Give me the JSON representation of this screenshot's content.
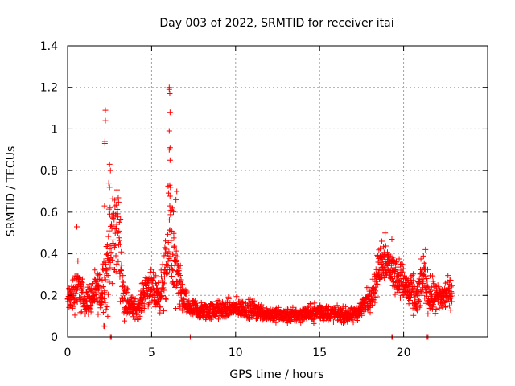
{
  "chart_data": {
    "type": "scatter",
    "title": "Day 003 of 2022, SRMTID for receiver itai",
    "xlabel": "GPS time / hours",
    "ylabel": "SRMTID / TECUs",
    "xlim": [
      0,
      25
    ],
    "ylim": [
      0,
      1.4
    ],
    "xticks": [
      0,
      5,
      10,
      15,
      20
    ],
    "yticks": [
      0,
      0.2,
      0.4,
      0.6,
      0.8,
      1,
      1.2,
      1.4
    ],
    "xtick_labels": [
      "0",
      "5",
      "10",
      "15",
      "20"
    ],
    "ytick_labels": [
      "0",
      "0.2",
      "0.4",
      "0.6",
      "0.8",
      "1",
      "1.2",
      "1.4"
    ],
    "grid": true,
    "marker": "+",
    "color": "#ff0000",
    "series": [
      {
        "name": "SRMTID",
        "profile_x": [
          0,
          0.3,
          0.6,
          1.0,
          1.5,
          2.0,
          2.3,
          2.6,
          3.0,
          3.3,
          3.7,
          4.2,
          4.7,
          5.0,
          5.5,
          5.9,
          6.1,
          6.4,
          6.8,
          7.2,
          8,
          9,
          10,
          11,
          12,
          13,
          14,
          15,
          16,
          17,
          17.5,
          18.2,
          18.6,
          18.9,
          19.3,
          19.8,
          20.3,
          20.8,
          21.2,
          21.5,
          22,
          22.5,
          22.9
        ],
        "profile_center": [
          0.18,
          0.2,
          0.25,
          0.17,
          0.2,
          0.22,
          0.3,
          0.45,
          0.55,
          0.2,
          0.15,
          0.13,
          0.25,
          0.22,
          0.2,
          0.32,
          0.55,
          0.3,
          0.2,
          0.14,
          0.12,
          0.13,
          0.14,
          0.13,
          0.11,
          0.1,
          0.11,
          0.12,
          0.11,
          0.1,
          0.14,
          0.22,
          0.35,
          0.38,
          0.32,
          0.28,
          0.22,
          0.18,
          0.3,
          0.2,
          0.18,
          0.2,
          0.22
        ],
        "profile_spread": [
          0.07,
          0.1,
          0.14,
          0.08,
          0.09,
          0.12,
          0.28,
          0.28,
          0.25,
          0.12,
          0.06,
          0.05,
          0.1,
          0.1,
          0.09,
          0.2,
          0.38,
          0.2,
          0.1,
          0.05,
          0.05,
          0.05,
          0.05,
          0.05,
          0.04,
          0.04,
          0.04,
          0.05,
          0.04,
          0.04,
          0.05,
          0.08,
          0.12,
          0.1,
          0.1,
          0.1,
          0.1,
          0.1,
          0.12,
          0.1,
          0.09,
          0.09,
          0.08
        ],
        "peaks": [
          [
            2.25,
            1.09
          ],
          [
            2.25,
            1.04
          ],
          [
            2.22,
            0.93
          ],
          [
            2.22,
            0.94
          ],
          [
            2.5,
            0.83
          ],
          [
            2.55,
            0.8
          ],
          [
            2.45,
            0.74
          ],
          [
            2.5,
            0.72
          ],
          [
            6.05,
            1.2
          ],
          [
            6.05,
            1.19
          ],
          [
            6.08,
            1.17
          ],
          [
            6.1,
            1.08
          ],
          [
            6.05,
            0.99
          ],
          [
            6.1,
            0.91
          ],
          [
            6.05,
            0.9
          ],
          [
            6.1,
            0.85
          ],
          [
            6.08,
            0.73
          ],
          [
            6.12,
            0.72
          ],
          [
            6.5,
            0.7
          ],
          [
            6.45,
            0.66
          ],
          [
            0.55,
            0.53
          ],
          [
            2.2,
            0.63
          ],
          [
            18.9,
            0.5
          ],
          [
            19.3,
            0.47
          ],
          [
            21.3,
            0.42
          ],
          [
            18.7,
            0.46
          ]
        ],
        "zeros": [
          2.55,
          2.6,
          7.3,
          19.3,
          19.35,
          21.4,
          21.45
        ]
      }
    ]
  }
}
